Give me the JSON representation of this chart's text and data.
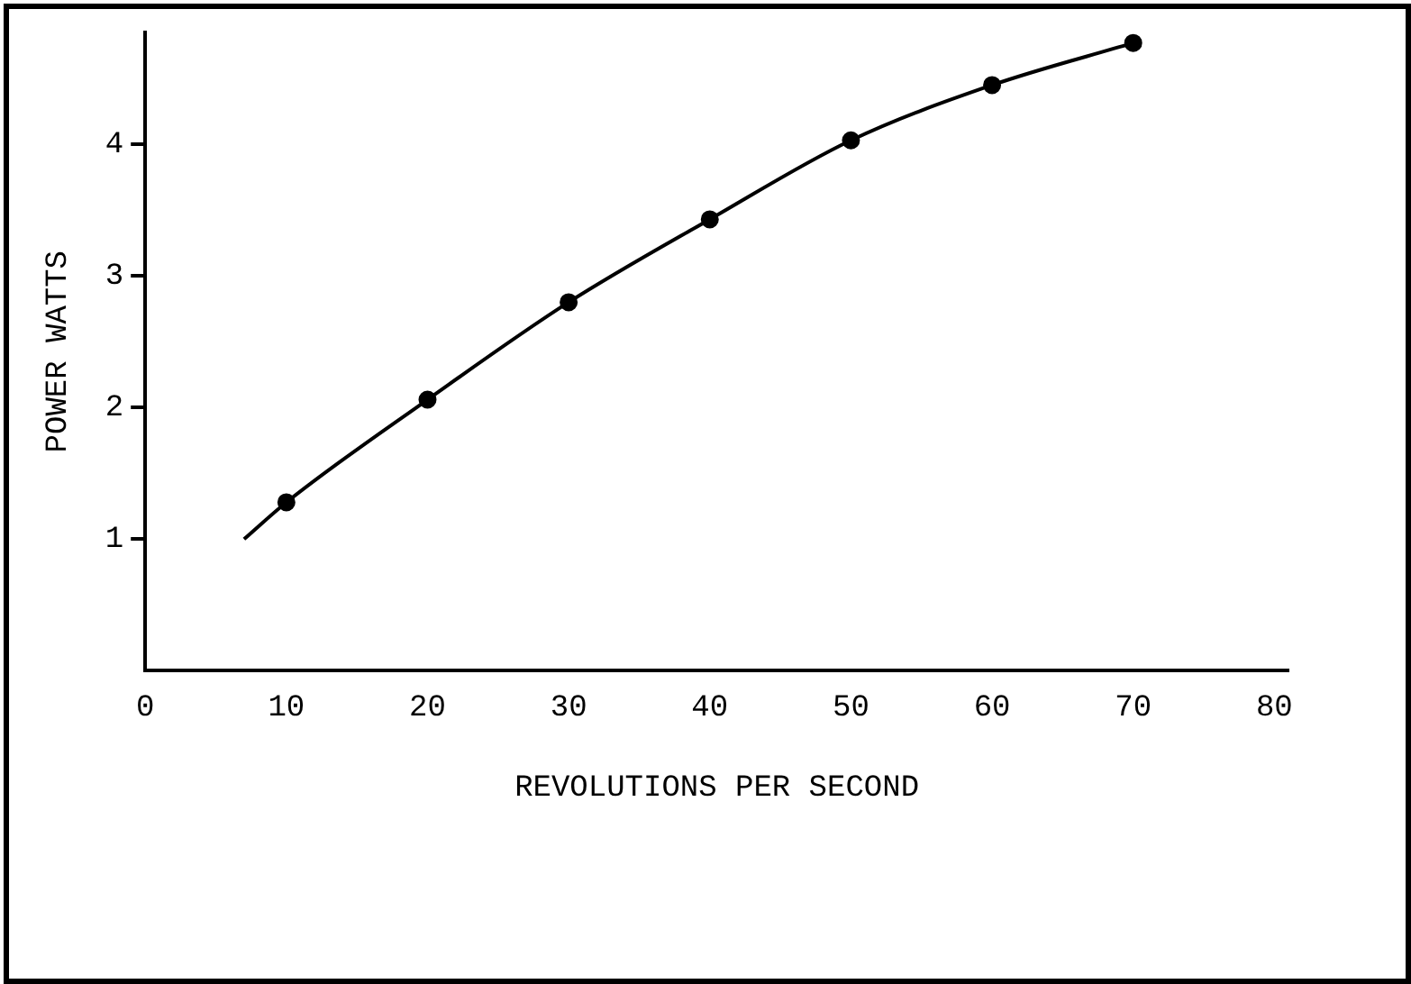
{
  "chart_data": {
    "type": "scatter",
    "xlabel": "REVOLUTIONS PER SECOND",
    "ylabel": "POWER WATTS",
    "xlim": [
      0,
      81
    ],
    "xticks": [
      0,
      10,
      20,
      30,
      40,
      50,
      60,
      70,
      80
    ],
    "ylim": [
      0,
      4.85
    ],
    "yticks": [
      1,
      2,
      3,
      4
    ],
    "grid": false,
    "legend": false,
    "marker": "circle",
    "series": [
      {
        "type": "line",
        "color": "#000000",
        "x": [
          7,
          10,
          20,
          30,
          40,
          50,
          60,
          70
        ],
        "values": [
          1.0,
          1.28,
          2.06,
          2.8,
          3.43,
          4.03,
          4.45,
          4.77
        ],
        "marker": "none"
      },
      {
        "type": "scatter",
        "color": "#000000",
        "x": [
          10,
          20,
          30,
          40,
          50,
          60,
          70
        ],
        "values": [
          1.28,
          2.06,
          2.8,
          3.43,
          4.03,
          4.45,
          4.77
        ]
      }
    ]
  }
}
